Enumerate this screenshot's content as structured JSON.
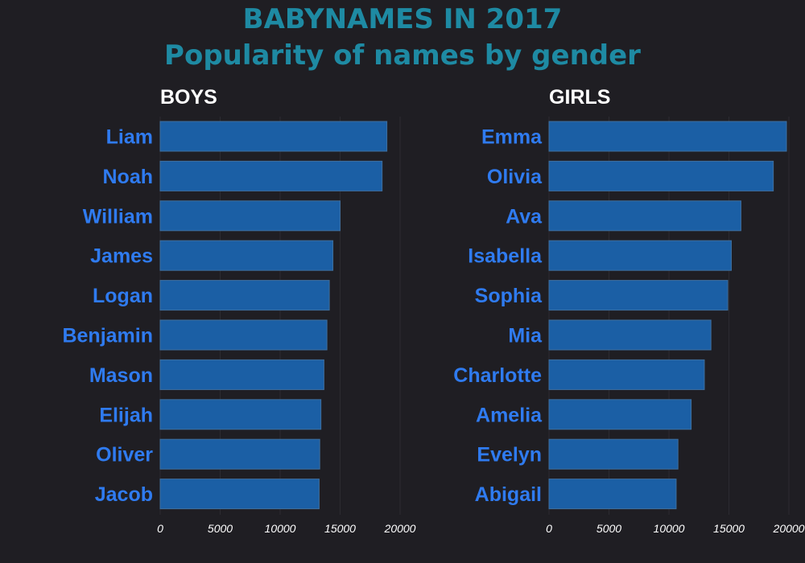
{
  "title": {
    "line1": "BABYNAMES IN 2017",
    "line2": "Popularity of names by gender"
  },
  "colors": {
    "background": "#1f1e23",
    "title": "#1e8aa3",
    "bar": "#1b5fa5",
    "bar_stroke": "#3f6f9e",
    "category_label": "#2f7bf0",
    "panel_title": "#ffffff",
    "tick_label": "#ffffff"
  },
  "chart_data": [
    {
      "type": "bar",
      "orientation": "horizontal",
      "title": "BOYS",
      "categories": [
        "Liam",
        "Noah",
        "William",
        "James",
        "Logan",
        "Benjamin",
        "Mason",
        "Elijah",
        "Oliver",
        "Jacob"
      ],
      "values": [
        18900,
        18500,
        15000,
        14400,
        14100,
        13900,
        13650,
        13400,
        13300,
        13250
      ],
      "xlim": [
        0,
        20000
      ],
      "xticks": [
        "0",
        "5000",
        "10000",
        "15000",
        "20000"
      ],
      "grid": true,
      "xlabel": "",
      "ylabel": ""
    },
    {
      "type": "bar",
      "orientation": "horizontal",
      "title": "GIRLS",
      "categories": [
        "Emma",
        "Olivia",
        "Ava",
        "Isabella",
        "Sophia",
        "Mia",
        "Charlotte",
        "Amelia",
        "Evelyn",
        "Abigail"
      ],
      "values": [
        19800,
        18700,
        16000,
        15200,
        14900,
        13500,
        12950,
        11850,
        10750,
        10600
      ],
      "xlim": [
        0,
        20000
      ],
      "xticks": [
        "0",
        "5000",
        "10000",
        "15000",
        "20000"
      ],
      "grid": true,
      "xlabel": "",
      "ylabel": ""
    }
  ]
}
